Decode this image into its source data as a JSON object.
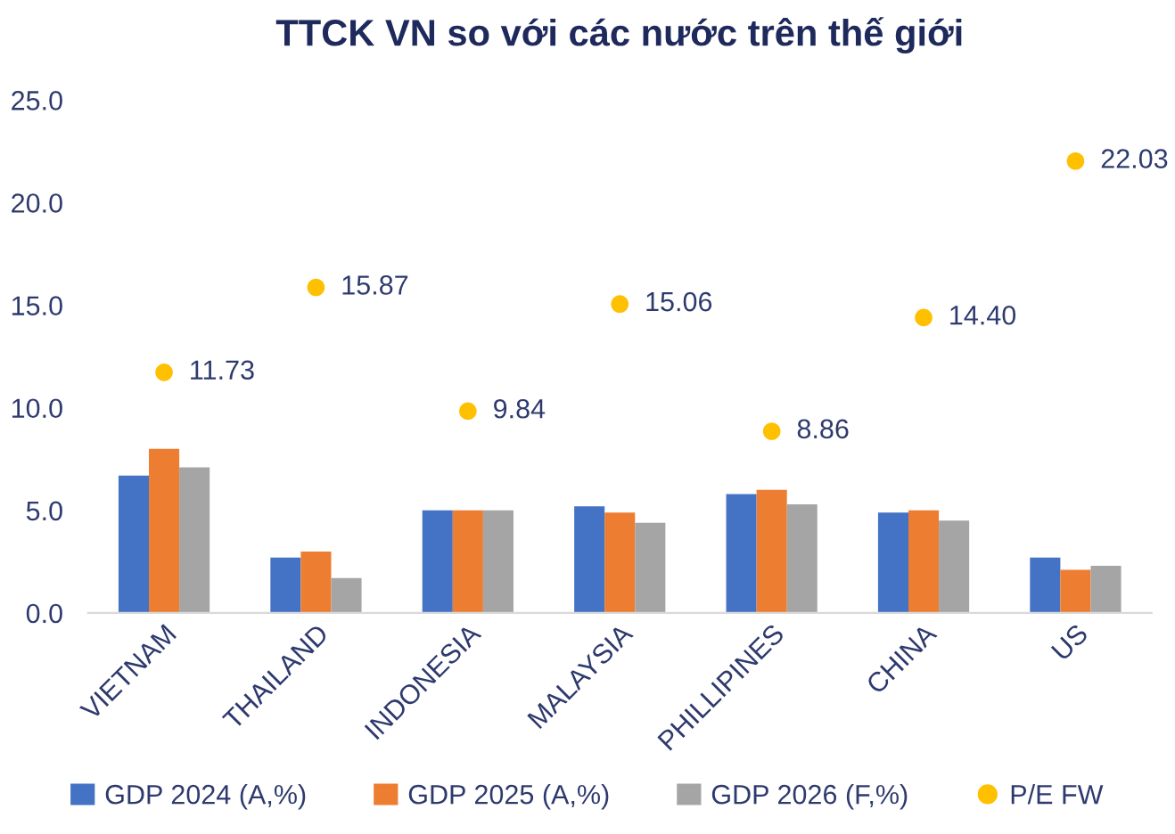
{
  "chart_data": {
    "type": "bar",
    "title": "TTCK VN so với các nước trên thế giới",
    "categories": [
      "VIETNAM",
      "THAILAND",
      "INDONESIA",
      "MALAYSIA",
      "PHILLIPINES",
      "CHINA",
      "US"
    ],
    "series": [
      {
        "name": "GDP 2024 (A,%)",
        "color": "#4472c4",
        "values": [
          6.7,
          2.7,
          5.0,
          5.2,
          5.8,
          4.9,
          2.7
        ]
      },
      {
        "name": "GDP 2025 (A,%)",
        "color": "#ed7d31",
        "values": [
          8.0,
          3.0,
          5.0,
          4.9,
          6.0,
          5.0,
          2.1
        ]
      },
      {
        "name": "GDP 2026 (F,%)",
        "color": "#a5a5a5",
        "values": [
          7.1,
          1.7,
          5.0,
          4.4,
          5.3,
          4.5,
          2.3
        ]
      },
      {
        "name": "P/E FW",
        "type": "scatter",
        "color": "#ffc000",
        "marker": "circle",
        "values": [
          11.73,
          15.87,
          9.84,
          15.06,
          8.86,
          14.4,
          22.03
        ],
        "value_labels": [
          "11.73",
          "15.87",
          "9.84",
          "15.06",
          "8.86",
          "14.40",
          "22.03"
        ]
      }
    ],
    "ylim": [
      0,
      25
    ],
    "yticks": [
      {
        "value": 0,
        "label": "0.0"
      },
      {
        "value": 5,
        "label": "5.0"
      },
      {
        "value": 10,
        "label": "10.0"
      },
      {
        "value": 15,
        "label": "15.0"
      },
      {
        "value": 20,
        "label": "20.0"
      },
      {
        "value": 25,
        "label": "25.0"
      }
    ],
    "grid": false,
    "legend": "bottom"
  }
}
